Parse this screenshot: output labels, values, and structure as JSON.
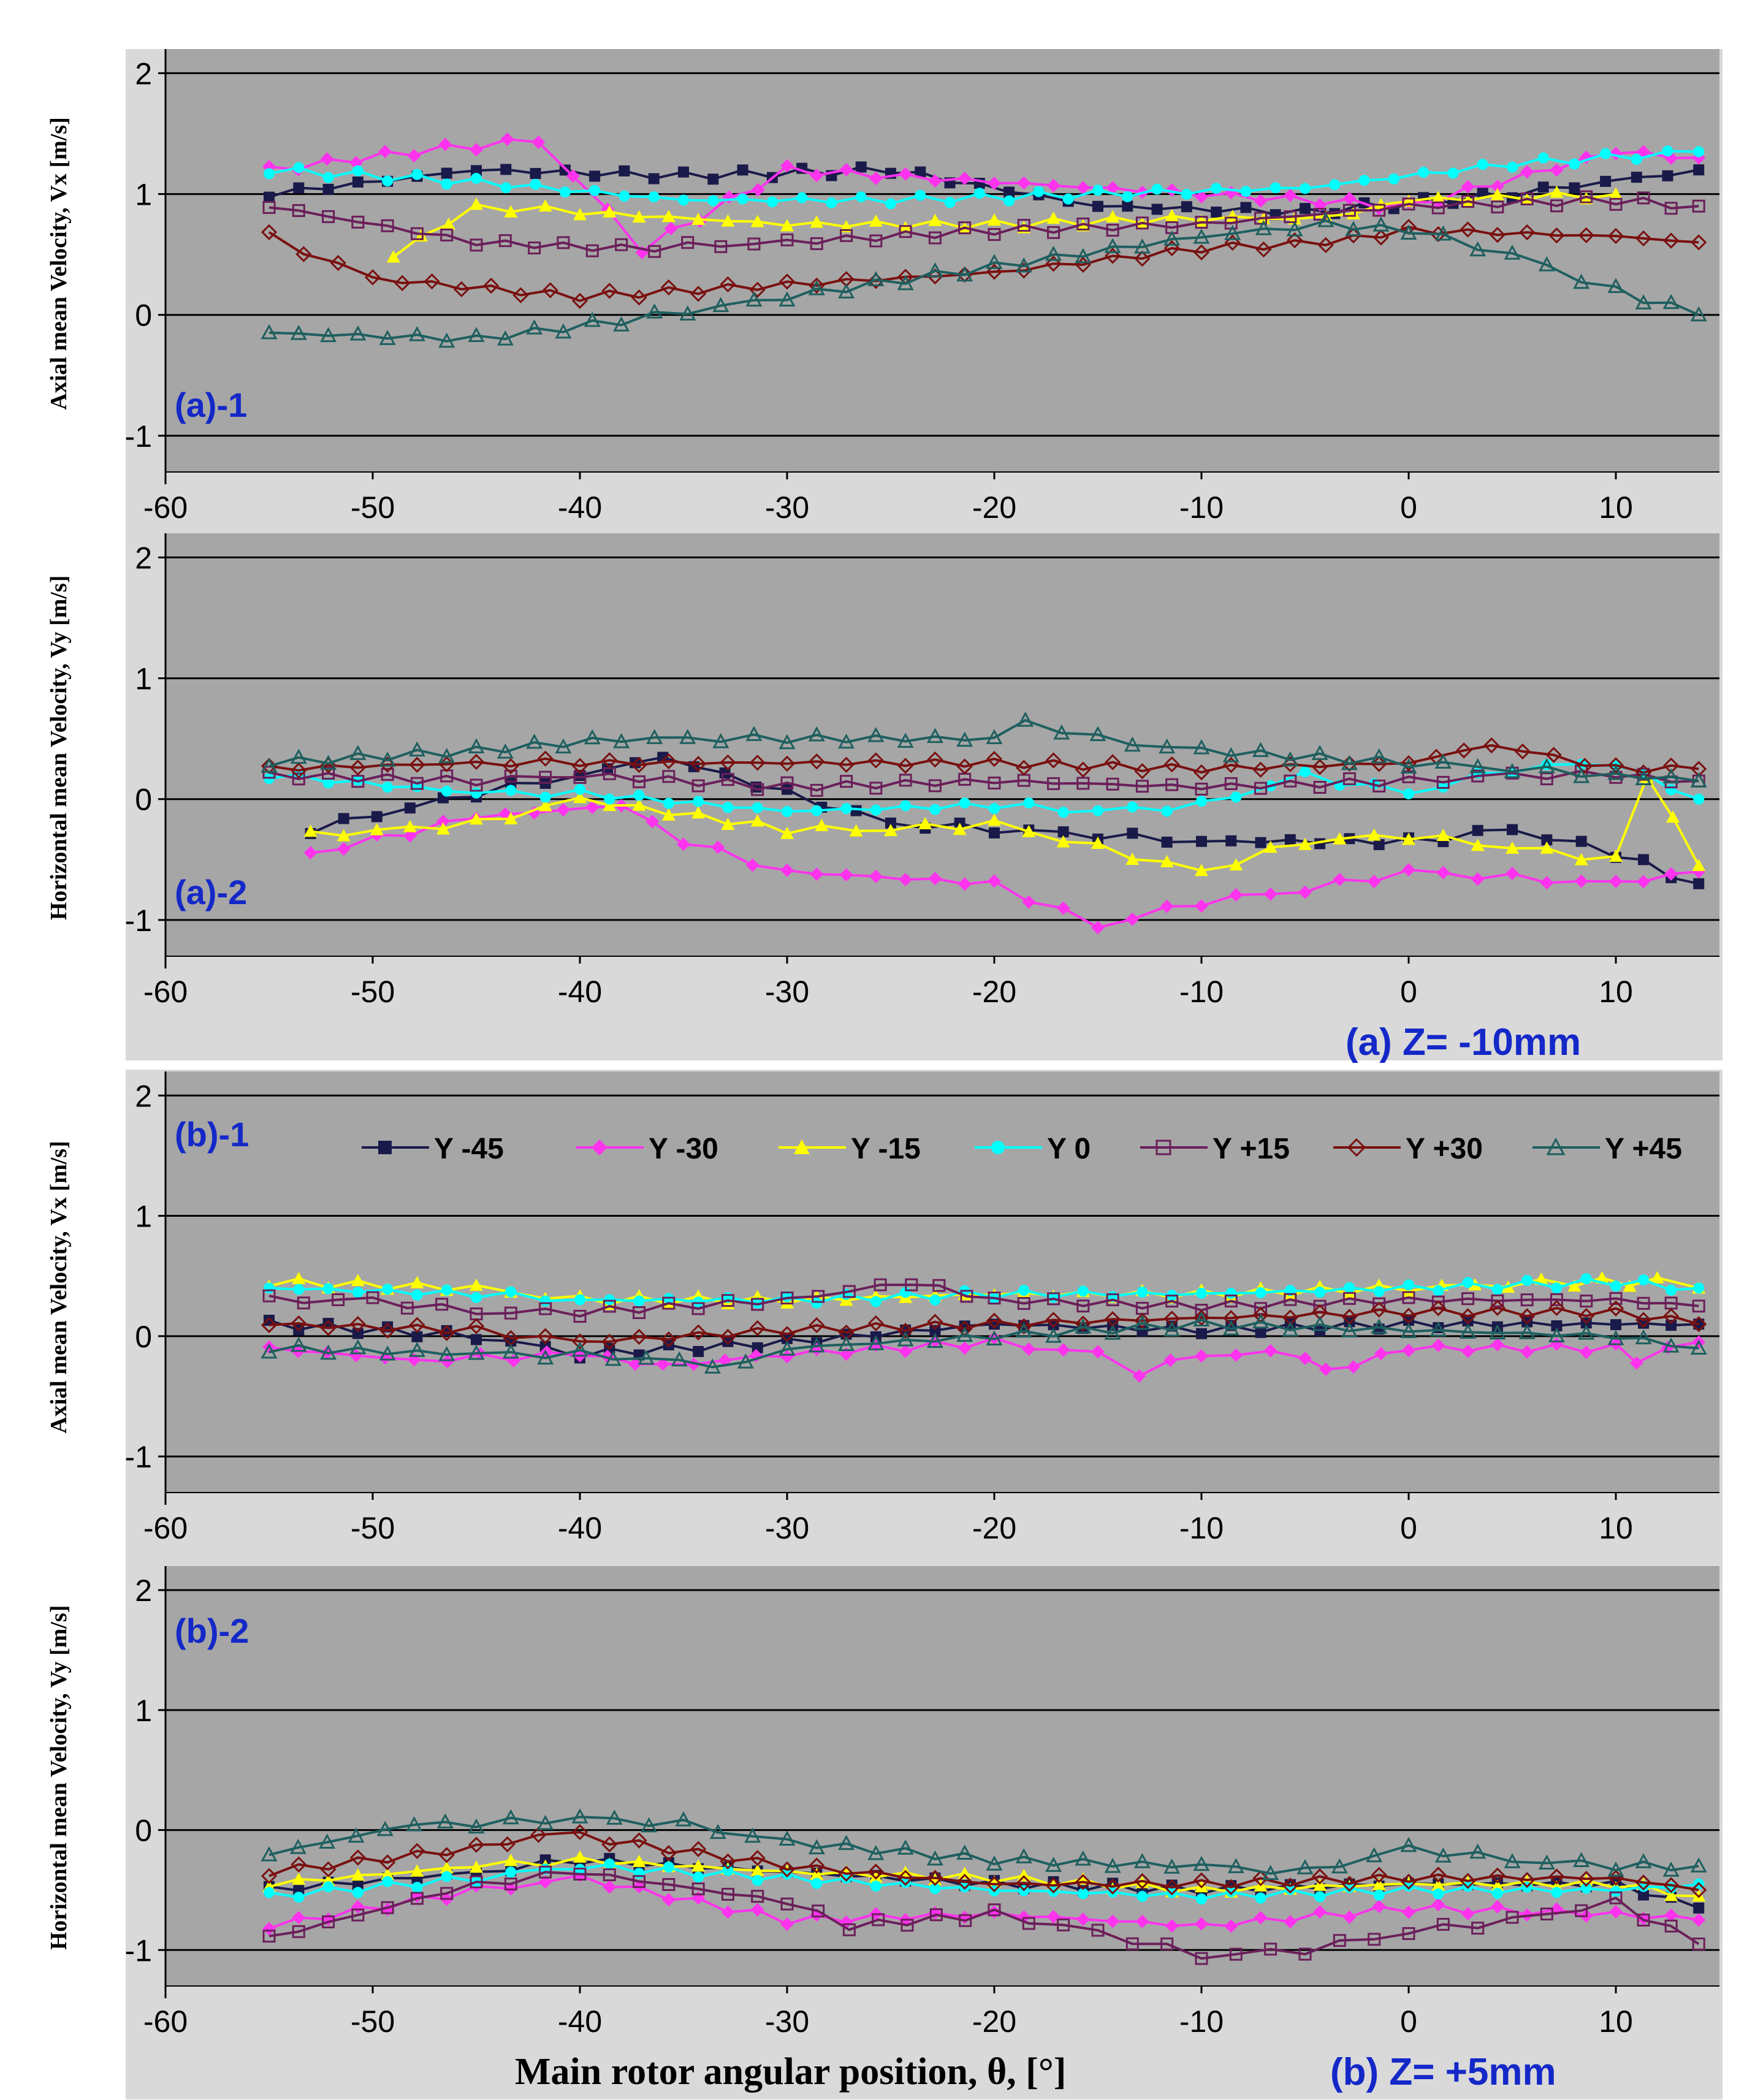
{
  "colors": {
    "plot_bg": "#a6a6a6",
    "grid": "#000000",
    "outer_bg": "#d9d9d9",
    "panel_label": "#1428c8"
  },
  "series_styles": [
    {
      "name": "Y -45",
      "color": "#1a1a4a",
      "marker": "square-filled"
    },
    {
      "name": "Y -30",
      "color": "#ff33ee",
      "marker": "diamond-filled"
    },
    {
      "name": "Y -15",
      "color": "#ffff00",
      "marker": "triangle-filled"
    },
    {
      "name": "Y 0",
      "color": "#00ffff",
      "marker": "circle-filled"
    },
    {
      "name": "Y +15",
      "color": "#6b1f5a",
      "marker": "square-open"
    },
    {
      "name": "Y +30",
      "color": "#7a1010",
      "marker": "diamond-open"
    },
    {
      "name": "Y +45",
      "color": "#1f5f5f",
      "marker": "triangle-open"
    }
  ],
  "x_axis_title": "Main rotor angular position, θ, [°]",
  "group_labels": [
    "(a) Z= -10mm",
    "(b) Z= +5mm"
  ],
  "chart_data": [
    {
      "type": "line",
      "panel_label": "(a)-1",
      "ylabel": "Axial mean Velocity, Vx [m/s]",
      "xlim": [
        -60,
        15
      ],
      "ylim": [
        -1.3,
        2.2
      ],
      "xticks": [
        -60,
        -50,
        -40,
        -30,
        -20,
        -10,
        0,
        10
      ],
      "yticks": [
        -1,
        0,
        1,
        2
      ],
      "grid": "horizontal",
      "series": [
        {
          "name": "Y -45",
          "x": [
            -55,
            -45,
            -35,
            -25,
            -15,
            -5,
            5,
            14
          ],
          "y": [
            1.0,
            1.2,
            1.15,
            1.2,
            0.9,
            0.85,
            1.0,
            1.2
          ]
        },
        {
          "name": "Y -30",
          "x": [
            -55,
            -48,
            -42,
            -37,
            -30,
            -20,
            -10,
            0,
            10,
            14
          ],
          "y": [
            1.2,
            1.35,
            1.45,
            0.55,
            1.2,
            1.1,
            1.0,
            0.9,
            1.35,
            1.3
          ]
        },
        {
          "name": "Y -15",
          "x": [
            -49,
            -45,
            -40,
            -30,
            -20,
            -10,
            -4,
            0,
            10
          ],
          "y": [
            0.5,
            0.9,
            0.85,
            0.75,
            0.75,
            0.8,
            0.8,
            0.95,
            1.0
          ]
        },
        {
          "name": "Y 0",
          "x": [
            -55,
            -45,
            -35,
            -25,
            -15,
            -5,
            5,
            14
          ],
          "y": [
            1.2,
            1.1,
            0.95,
            0.95,
            1.0,
            1.05,
            1.25,
            1.35
          ]
        },
        {
          "name": "Y +15",
          "x": [
            -55,
            -45,
            -38,
            -30,
            -20,
            -10,
            0,
            10,
            14
          ],
          "y": [
            0.9,
            0.6,
            0.55,
            0.6,
            0.7,
            0.75,
            0.9,
            0.95,
            0.9
          ]
        },
        {
          "name": "Y +30",
          "x": [
            -55,
            -50,
            -40,
            -30,
            -20,
            -10,
            -4,
            0,
            10,
            14
          ],
          "y": [
            0.65,
            0.3,
            0.15,
            0.25,
            0.35,
            0.55,
            0.6,
            0.7,
            0.65,
            0.6
          ]
        },
        {
          "name": "Y +45",
          "x": [
            -55,
            -45,
            -38,
            -30,
            -20,
            -10,
            -4,
            0,
            5,
            10,
            14
          ],
          "y": [
            -0.15,
            -0.2,
            -0.05,
            0.15,
            0.4,
            0.65,
            0.75,
            0.7,
            0.5,
            0.2,
            0.0
          ]
        }
      ]
    },
    {
      "type": "line",
      "panel_label": "(a)-2",
      "ylabel": "Horizontal mean Velocity, Vy [m/s]",
      "xlim": [
        -60,
        15
      ],
      "ylim": [
        -1.3,
        2.2
      ],
      "xticks": [
        -60,
        -50,
        -40,
        -30,
        -20,
        -10,
        0,
        10
      ],
      "yticks": [
        -1,
        0,
        1,
        2
      ],
      "grid": "horizontal",
      "series": [
        {
          "name": "Y -45",
          "x": [
            -53,
            -45,
            -40,
            -36,
            -30,
            -25,
            -20,
            -15,
            -10,
            0,
            5,
            10,
            14
          ],
          "y": [
            -0.25,
            0.05,
            0.2,
            0.35,
            0.05,
            -0.2,
            -0.25,
            -0.3,
            -0.35,
            -0.35,
            -0.25,
            -0.45,
            -0.7
          ]
        },
        {
          "name": "Y -30",
          "x": [
            -53,
            -45,
            -38,
            -35,
            -30,
            -20,
            -15,
            -10,
            -5,
            0,
            5,
            10,
            14
          ],
          "y": [
            -0.45,
            -0.15,
            -0.05,
            -0.35,
            -0.6,
            -0.7,
            -1.05,
            -0.85,
            -0.75,
            -0.6,
            -0.65,
            -0.7,
            -0.6
          ]
        },
        {
          "name": "Y -15",
          "x": [
            -53,
            -45,
            -40,
            -30,
            -25,
            -20,
            -15,
            -10,
            -5,
            0,
            5,
            10,
            11.5,
            14
          ],
          "y": [
            -0.3,
            -0.2,
            0.0,
            -0.25,
            -0.25,
            -0.2,
            -0.4,
            -0.6,
            -0.35,
            -0.3,
            -0.4,
            -0.5,
            0.2,
            -0.55
          ]
        },
        {
          "name": "Y 0",
          "x": [
            -55,
            -45,
            -40,
            -30,
            -20,
            -15,
            -10,
            -5,
            0,
            5,
            10,
            14
          ],
          "y": [
            0.2,
            0.05,
            0.05,
            -0.1,
            -0.05,
            -0.1,
            -0.05,
            0.2,
            0.05,
            0.25,
            0.3,
            0.0
          ]
        },
        {
          "name": "Y +15",
          "x": [
            -55,
            -45,
            -40,
            -30,
            -20,
            -10,
            0,
            5,
            10,
            14
          ],
          "y": [
            0.2,
            0.15,
            0.2,
            0.1,
            0.15,
            0.1,
            0.15,
            0.2,
            0.2,
            0.15
          ]
        },
        {
          "name": "Y +30",
          "x": [
            -55,
            -45,
            -40,
            -30,
            -20,
            -10,
            0,
            4,
            10,
            14
          ],
          "y": [
            0.25,
            0.3,
            0.3,
            0.3,
            0.3,
            0.25,
            0.3,
            0.45,
            0.25,
            0.25
          ]
        },
        {
          "name": "Y +45",
          "x": [
            -55,
            -45,
            -38,
            -30,
            -20,
            -18.5,
            -15,
            -10,
            0,
            5,
            10,
            14
          ],
          "y": [
            0.3,
            0.4,
            0.5,
            0.5,
            0.5,
            0.65,
            0.5,
            0.4,
            0.3,
            0.25,
            0.2,
            0.15
          ]
        }
      ]
    },
    {
      "type": "line",
      "panel_label": "(b)-1",
      "ylabel": "Axial mean Velocity, Vx [m/s]",
      "xlim": [
        -60,
        15
      ],
      "ylim": [
        -1.3,
        2.2
      ],
      "xticks": [
        -60,
        -50,
        -40,
        -30,
        -20,
        -10,
        0,
        10
      ],
      "yticks": [
        -1,
        0,
        1,
        2
      ],
      "grid": "horizontal",
      "legend": "top",
      "series": [
        {
          "name": "Y -45",
          "x": [
            -55,
            -45,
            -40,
            -30,
            -20,
            -10,
            0,
            10,
            14
          ],
          "y": [
            0.1,
            0.0,
            -0.15,
            -0.05,
            0.1,
            0.05,
            0.1,
            0.1,
            0.1
          ]
        },
        {
          "name": "Y -30",
          "x": [
            -55,
            -48,
            -40,
            -36,
            -30,
            -20,
            -15,
            -13,
            -10,
            -5,
            -4,
            0,
            10,
            11,
            14
          ],
          "y": [
            -0.1,
            -0.2,
            -0.15,
            -0.25,
            -0.15,
            -0.05,
            -0.15,
            -0.3,
            -0.15,
            -0.15,
            -0.3,
            -0.1,
            -0.1,
            -0.2,
            -0.05
          ]
        },
        {
          "name": "Y -15",
          "x": [
            -55,
            -45,
            -40,
            -30,
            -20,
            -10,
            0,
            8,
            12,
            14
          ],
          "y": [
            0.45,
            0.4,
            0.3,
            0.3,
            0.35,
            0.35,
            0.4,
            0.45,
            0.45,
            0.4
          ]
        },
        {
          "name": "Y 0",
          "x": [
            -55,
            -45,
            -40,
            -30,
            -20,
            -10,
            0,
            10,
            14
          ],
          "y": [
            0.4,
            0.35,
            0.3,
            0.3,
            0.35,
            0.35,
            0.4,
            0.45,
            0.4
          ]
        },
        {
          "name": "Y +15",
          "x": [
            -55,
            -50,
            -45,
            -40,
            -30,
            -24,
            -20,
            -10,
            0,
            10,
            14
          ],
          "y": [
            0.3,
            0.3,
            0.2,
            0.2,
            0.3,
            0.45,
            0.3,
            0.25,
            0.3,
            0.3,
            0.25
          ]
        },
        {
          "name": "Y +30",
          "x": [
            -55,
            -45,
            -40,
            -30,
            -20,
            -10,
            0,
            10,
            14
          ],
          "y": [
            0.1,
            0.05,
            -0.05,
            0.05,
            0.1,
            0.15,
            0.2,
            0.2,
            0.1
          ]
        },
        {
          "name": "Y +45",
          "x": [
            -55,
            -45,
            -40,
            -32,
            -30,
            -20,
            -10,
            0,
            10,
            14
          ],
          "y": [
            -0.1,
            -0.15,
            -0.15,
            -0.25,
            -0.1,
            0.0,
            0.1,
            0.05,
            0.0,
            -0.1
          ]
        }
      ]
    },
    {
      "type": "line",
      "panel_label": "(b)-2",
      "ylabel": "Horizontal mean Velocity, Vy [m/s]",
      "xlim": [
        -60,
        15
      ],
      "ylim": [
        -1.3,
        2.2
      ],
      "xticks": [
        -60,
        -50,
        -40,
        -30,
        -20,
        -10,
        0,
        10
      ],
      "yticks": [
        -1,
        0,
        1,
        2
      ],
      "grid": "horizontal",
      "series": [
        {
          "name": "Y -45",
          "x": [
            -55,
            -45,
            -40,
            -30,
            -20,
            -10,
            0,
            10,
            14
          ],
          "y": [
            -0.5,
            -0.35,
            -0.25,
            -0.35,
            -0.45,
            -0.5,
            -0.45,
            -0.45,
            -0.65
          ]
        },
        {
          "name": "Y -30",
          "x": [
            -55,
            -45,
            -40,
            -30,
            -20,
            -10,
            0,
            10,
            14
          ],
          "y": [
            -0.8,
            -0.5,
            -0.4,
            -0.75,
            -0.7,
            -0.8,
            -0.65,
            -0.7,
            -0.75
          ]
        },
        {
          "name": "Y -15",
          "x": [
            -55,
            -45,
            -40,
            -30,
            -20,
            -10,
            0,
            10,
            14
          ],
          "y": [
            -0.45,
            -0.3,
            -0.25,
            -0.35,
            -0.4,
            -0.5,
            -0.45,
            -0.45,
            -0.55
          ]
        },
        {
          "name": "Y 0",
          "x": [
            -55,
            -45,
            -40,
            -30,
            -20,
            -10,
            0,
            10,
            14
          ],
          "y": [
            -0.55,
            -0.4,
            -0.3,
            -0.4,
            -0.5,
            -0.55,
            -0.5,
            -0.5,
            -0.45
          ]
        },
        {
          "name": "Y +15",
          "x": [
            -55,
            -45,
            -40,
            -30,
            -27,
            -20,
            -15,
            -10,
            -5,
            0,
            5,
            10,
            14
          ],
          "y": [
            -0.9,
            -0.45,
            -0.35,
            -0.6,
            -0.8,
            -0.7,
            -0.85,
            -1.05,
            -1.0,
            -0.85,
            -0.75,
            -0.6,
            -0.95
          ]
        },
        {
          "name": "Y +30",
          "x": [
            -55,
            -45,
            -42,
            -40,
            -30,
            -20,
            -10,
            0,
            10,
            14
          ],
          "y": [
            -0.35,
            -0.15,
            -0.05,
            -0.05,
            -0.3,
            -0.45,
            -0.45,
            -0.4,
            -0.4,
            -0.5
          ]
        },
        {
          "name": "Y +45",
          "x": [
            -55,
            -48,
            -45,
            -40,
            -35,
            -30,
            -20,
            -10,
            -5,
            0,
            5,
            10,
            14
          ],
          "y": [
            -0.2,
            0.05,
            0.05,
            0.1,
            0.05,
            -0.1,
            -0.25,
            -0.3,
            -0.35,
            -0.15,
            -0.25,
            -0.3,
            -0.3
          ]
        }
      ]
    }
  ]
}
